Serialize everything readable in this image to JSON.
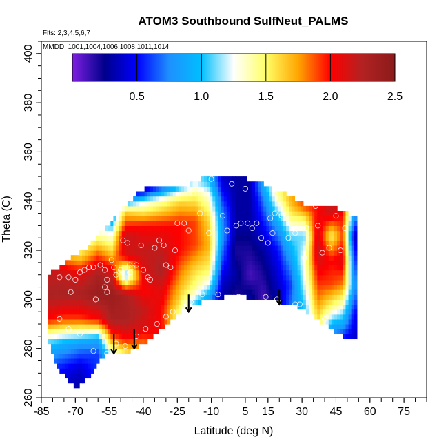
{
  "chart_data": {
    "type": "heatmap",
    "title": "ATOM3 Southbound SulfNeut_PALMS",
    "flights_note": "Flts: 2,3,4,5,6,7",
    "dates_note": "MMDD: 1001,1004,1006,1008,1011,1014",
    "xlabel": "Latitude (deg N)",
    "ylabel": "Theta (C)",
    "xlim": [
      -85,
      85
    ],
    "ylim": [
      260,
      405
    ],
    "x_ticks": [
      -85,
      -70,
      -55,
      -40,
      -25,
      -10,
      5,
      15,
      30,
      45,
      60,
      75
    ],
    "y_ticks": [
      260,
      280,
      300,
      320,
      340,
      360,
      380,
      400
    ],
    "colorbar": {
      "range": [
        0,
        2.5
      ],
      "ticks": [
        0.5,
        1.0,
        1.5,
        2.0,
        2.5
      ],
      "tick_labels": [
        "0.5",
        "1.0",
        "1.5",
        "2.0",
        "2.5"
      ],
      "colors": [
        "#7e1fe0",
        "#00008b",
        "#0000ff",
        "#1e90ff",
        "#00bfff",
        "#ffffff",
        "#ffff66",
        "#ffa500",
        "#ff0000",
        "#b22222",
        "#8b1a1a"
      ]
    },
    "field_nodes": [
      {
        "lat": -82,
        "vals": [
          [
            266,
            0.5
          ],
          [
            272,
            0.6
          ],
          [
            282,
            1.0
          ],
          [
            292,
            2.0
          ],
          [
            302,
            2.3
          ],
          [
            310,
            2.2
          ]
        ]
      },
      {
        "lat": -75,
        "vals": [
          [
            266,
            0.4
          ],
          [
            272,
            0.5
          ],
          [
            282,
            0.9
          ],
          [
            292,
            1.9
          ],
          [
            302,
            2.3
          ],
          [
            310,
            2.2
          ],
          [
            318,
            1.7
          ],
          [
            322,
            1.3
          ]
        ]
      },
      {
        "lat": -68,
        "vals": [
          [
            264,
            0.3
          ],
          [
            272,
            0.4
          ],
          [
            282,
            0.8
          ],
          [
            292,
            1.9
          ],
          [
            302,
            2.3
          ],
          [
            310,
            2.1
          ],
          [
            318,
            1.6
          ],
          [
            326,
            1.2
          ]
        ]
      },
      {
        "lat": -60,
        "vals": [
          [
            278,
            0.6
          ],
          [
            284,
            0.9
          ],
          [
            292,
            2.0
          ],
          [
            302,
            2.4
          ],
          [
            310,
            2.3
          ],
          [
            318,
            1.9
          ],
          [
            326,
            1.4
          ],
          [
            334,
            0.9
          ]
        ]
      },
      {
        "lat": -54,
        "vals": [
          [
            278,
            1.2
          ],
          [
            284,
            1.8
          ],
          [
            292,
            2.3
          ],
          [
            302,
            2.4
          ],
          [
            310,
            2.2
          ],
          [
            318,
            1.7
          ],
          [
            326,
            1.3
          ],
          [
            334,
            0.8
          ]
        ]
      },
      {
        "lat": -48,
        "vals": [
          [
            278,
            1.5
          ],
          [
            284,
            2.0
          ],
          [
            292,
            2.3
          ],
          [
            302,
            2.3
          ],
          [
            310,
            1.0
          ],
          [
            318,
            2.1
          ],
          [
            326,
            2.2
          ],
          [
            336,
            1.6
          ],
          [
            342,
            0.5
          ]
        ]
      },
      {
        "lat": -40,
        "vals": [
          [
            282,
            1.8
          ],
          [
            288,
            2.1
          ],
          [
            296,
            2.2
          ],
          [
            304,
            2.0
          ],
          [
            312,
            2.1
          ],
          [
            320,
            2.2
          ],
          [
            330,
            2.0
          ],
          [
            340,
            1.2
          ],
          [
            344,
            0.4
          ]
        ]
      },
      {
        "lat": -32,
        "vals": [
          [
            290,
            2.0
          ],
          [
            296,
            2.0
          ],
          [
            304,
            2.1
          ],
          [
            312,
            2.3
          ],
          [
            320,
            2.2
          ],
          [
            330,
            2.0
          ],
          [
            340,
            1.4
          ],
          [
            346,
            0.6
          ]
        ]
      },
      {
        "lat": -24,
        "vals": [
          [
            294,
            1.4
          ],
          [
            300,
            1.6
          ],
          [
            310,
            1.8
          ],
          [
            320,
            2.0
          ],
          [
            330,
            2.0
          ],
          [
            340,
            1.6
          ],
          [
            346,
            1.0
          ]
        ]
      },
      {
        "lat": -17,
        "vals": [
          [
            298,
            1.0
          ],
          [
            304,
            1.4
          ],
          [
            312,
            1.6
          ],
          [
            322,
            1.9
          ],
          [
            332,
            1.9
          ],
          [
            342,
            1.5
          ],
          [
            348,
            1.2
          ]
        ]
      },
      {
        "lat": -11,
        "vals": [
          [
            300,
            0.8
          ],
          [
            306,
            1.2
          ],
          [
            312,
            1.5
          ],
          [
            322,
            1.7
          ],
          [
            332,
            1.6
          ],
          [
            342,
            1.3
          ],
          [
            348,
            1.0
          ]
        ]
      },
      {
        "lat": -5,
        "vals": [
          [
            301,
            0.3
          ],
          [
            308,
            0.4
          ],
          [
            316,
            0.6
          ],
          [
            326,
            0.8
          ],
          [
            336,
            0.7
          ],
          [
            344,
            0.5
          ],
          [
            349,
            0.4
          ]
        ]
      },
      {
        "lat": 1,
        "vals": [
          [
            302,
            0.2
          ],
          [
            310,
            0.3
          ],
          [
            320,
            0.2
          ],
          [
            330,
            0.3
          ],
          [
            340,
            0.3
          ],
          [
            349,
            0.3
          ]
        ]
      },
      {
        "lat": 7,
        "vals": [
          [
            301,
            0.3
          ],
          [
            310,
            0.1
          ],
          [
            320,
            0.2
          ],
          [
            330,
            0.3
          ],
          [
            340,
            0.3
          ],
          [
            349,
            0.3
          ]
        ]
      },
      {
        "lat": 13,
        "vals": [
          [
            300,
            0.1
          ],
          [
            310,
            0.2
          ],
          [
            320,
            0.3
          ],
          [
            330,
            0.5
          ],
          [
            340,
            0.7
          ],
          [
            346,
            0.9
          ]
        ]
      },
      {
        "lat": 19,
        "vals": [
          [
            299,
            0.3
          ],
          [
            310,
            0.4
          ],
          [
            320,
            0.5
          ],
          [
            330,
            0.8
          ],
          [
            338,
            1.2
          ],
          [
            342,
            1.4
          ]
        ]
      },
      {
        "lat": 25,
        "vals": [
          [
            298,
            0.7
          ],
          [
            306,
            0.6
          ],
          [
            316,
            0.8
          ],
          [
            326,
            1.1
          ],
          [
            334,
            1.5
          ],
          [
            340,
            1.7
          ]
        ]
      },
      {
        "lat": 31,
        "vals": [
          [
            296,
            1.0
          ],
          [
            306,
            1.2
          ],
          [
            316,
            1.3
          ],
          [
            326,
            1.1
          ],
          [
            334,
            1.6
          ],
          [
            338,
            1.9
          ]
        ]
      },
      {
        "lat": 37,
        "vals": [
          [
            292,
            1.6
          ],
          [
            300,
            1.8
          ],
          [
            310,
            2.0
          ],
          [
            320,
            2.2
          ],
          [
            330,
            2.1
          ],
          [
            336,
            2.0
          ]
        ]
      },
      {
        "lat": 43,
        "vals": [
          [
            288,
            0.8
          ],
          [
            296,
            1.4
          ],
          [
            306,
            1.9
          ],
          [
            316,
            2.0
          ],
          [
            326,
            1.5
          ],
          [
            336,
            2.2
          ]
        ]
      },
      {
        "lat": 48,
        "vals": [
          [
            284,
            0.5
          ],
          [
            294,
            1.1
          ],
          [
            306,
            1.8
          ],
          [
            316,
            2.1
          ],
          [
            326,
            1.9
          ],
          [
            336,
            2.0
          ]
        ]
      },
      {
        "lat": 53,
        "vals": [
          [
            284,
            0.4
          ],
          [
            294,
            0.5
          ],
          [
            306,
            0.8
          ],
          [
            316,
            0.6
          ],
          [
            326,
            0.4
          ],
          [
            336,
            0.9
          ]
        ]
      }
    ],
    "data_domain": {
      "lower": [
        [
          -82,
          284
        ],
        [
          -78,
          272
        ],
        [
          -74,
          268
        ],
        [
          -70,
          264
        ],
        [
          -66,
          266
        ],
        [
          -60,
          274
        ],
        [
          -56,
          278
        ],
        [
          -52,
          278
        ],
        [
          -48,
          278
        ],
        [
          -44,
          280
        ],
        [
          -40,
          282
        ],
        [
          -35,
          286
        ],
        [
          -30,
          290
        ],
        [
          -25,
          294
        ],
        [
          -20,
          297
        ],
        [
          -15,
          299
        ],
        [
          -10,
          300
        ],
        [
          -5,
          301
        ],
        [
          0,
          302
        ],
        [
          5,
          301
        ],
        [
          10,
          300
        ],
        [
          15,
          300
        ],
        [
          20,
          299
        ],
        [
          25,
          298
        ],
        [
          30,
          296
        ],
        [
          35,
          293
        ],
        [
          40,
          290
        ],
        [
          45,
          286
        ],
        [
          50,
          284
        ],
        [
          54,
          284
        ]
      ],
      "upper": [
        [
          -82,
          310
        ],
        [
          -76,
          314
        ],
        [
          -70,
          318
        ],
        [
          -66,
          320
        ],
        [
          -60,
          326
        ],
        [
          -56,
          330
        ],
        [
          -52,
          334
        ],
        [
          -48,
          338
        ],
        [
          -44,
          342
        ],
        [
          -40,
          345
        ],
        [
          -35,
          346
        ],
        [
          -30,
          346
        ],
        [
          -25,
          346
        ],
        [
          -20,
          347
        ],
        [
          -15,
          349
        ],
        [
          -10,
          349
        ],
        [
          -5,
          349
        ],
        [
          0,
          349
        ],
        [
          5,
          349
        ],
        [
          10,
          348
        ],
        [
          15,
          346
        ],
        [
          20,
          344
        ],
        [
          25,
          342
        ],
        [
          30,
          339
        ],
        [
          35,
          337
        ],
        [
          40,
          337
        ],
        [
          45,
          337
        ],
        [
          50,
          336
        ],
        [
          54,
          334
        ]
      ]
    },
    "sample_points": [
      [
        -77,
        309
      ],
      [
        -73,
        309
      ],
      [
        -70,
        308
      ],
      [
        -72,
        303
      ],
      [
        -68,
        311
      ],
      [
        -66,
        312
      ],
      [
        -64,
        313
      ],
      [
        -61,
        300
      ],
      [
        -62,
        313
      ],
      [
        -59,
        314
      ],
      [
        -57,
        312
      ],
      [
        -57,
        305
      ],
      [
        -56,
        308
      ],
      [
        -56,
        303
      ],
      [
        -54,
        316
      ],
      [
        -53,
        313
      ],
      [
        -52,
        310
      ],
      [
        -50,
        312
      ],
      [
        -49,
        324
      ],
      [
        -47,
        323
      ],
      [
        -46,
        314
      ],
      [
        -46,
        311
      ],
      [
        -45,
        313
      ],
      [
        -43,
        314
      ],
      [
        -41,
        322
      ],
      [
        -40,
        312
      ],
      [
        -38,
        309
      ],
      [
        -37,
        308
      ],
      [
        -35,
        321
      ],
      [
        -33,
        324
      ],
      [
        -31,
        322
      ],
      [
        -30,
        314
      ],
      [
        -28,
        313
      ],
      [
        -26,
        320
      ],
      [
        -25,
        331
      ],
      [
        -22,
        331
      ],
      [
        -20,
        328
      ],
      [
        -18,
        343
      ],
      [
        -15,
        335
      ],
      [
        -14,
        302
      ],
      [
        -11,
        327
      ],
      [
        -10,
        349
      ],
      [
        -7,
        302
      ],
      [
        -5,
        334
      ],
      [
        -3,
        328
      ],
      [
        -1,
        347
      ],
      [
        1,
        330
      ],
      [
        2,
        301
      ],
      [
        3,
        331
      ],
      [
        5,
        345
      ],
      [
        6,
        331
      ],
      [
        8,
        329
      ],
      [
        10,
        331
      ],
      [
        12,
        325
      ],
      [
        14,
        301
      ],
      [
        15,
        323
      ],
      [
        16,
        333
      ],
      [
        17,
        327
      ],
      [
        18,
        335
      ],
      [
        19,
        300
      ],
      [
        21,
        334
      ],
      [
        24,
        325
      ],
      [
        27,
        327
      ],
      [
        29,
        298
      ],
      [
        31,
        317
      ],
      [
        32,
        329
      ],
      [
        34,
        341
      ],
      [
        36,
        338
      ],
      [
        37,
        330
      ],
      [
        39,
        319
      ],
      [
        42,
        321
      ],
      [
        45,
        334
      ],
      [
        47,
        320
      ],
      [
        49,
        329
      ],
      [
        53,
        282
      ],
      [
        -84,
        298
      ],
      [
        -77,
        292
      ],
      [
        -73,
        288
      ],
      [
        -68,
        286
      ],
      [
        -62,
        279
      ],
      [
        -56,
        278
      ],
      [
        -52,
        282
      ],
      [
        -48,
        281
      ],
      [
        -43,
        285
      ],
      [
        -39,
        288
      ],
      [
        -34,
        290
      ],
      [
        -30,
        293
      ],
      [
        -27,
        295
      ],
      [
        -22,
        297
      ],
      [
        -19,
        299
      ],
      [
        27,
        298
      ],
      [
        40,
        292
      ]
    ],
    "annotation_arrows": [
      {
        "lat": -53,
        "theta_from": 286,
        "theta_to": 278
      },
      {
        "lat": -44,
        "theta_from": 288,
        "theta_to": 280
      },
      {
        "lat": -20,
        "theta_from": 302,
        "theta_to": 295
      },
      {
        "lat": 20,
        "theta_from": 304,
        "theta_to": 298
      }
    ]
  }
}
